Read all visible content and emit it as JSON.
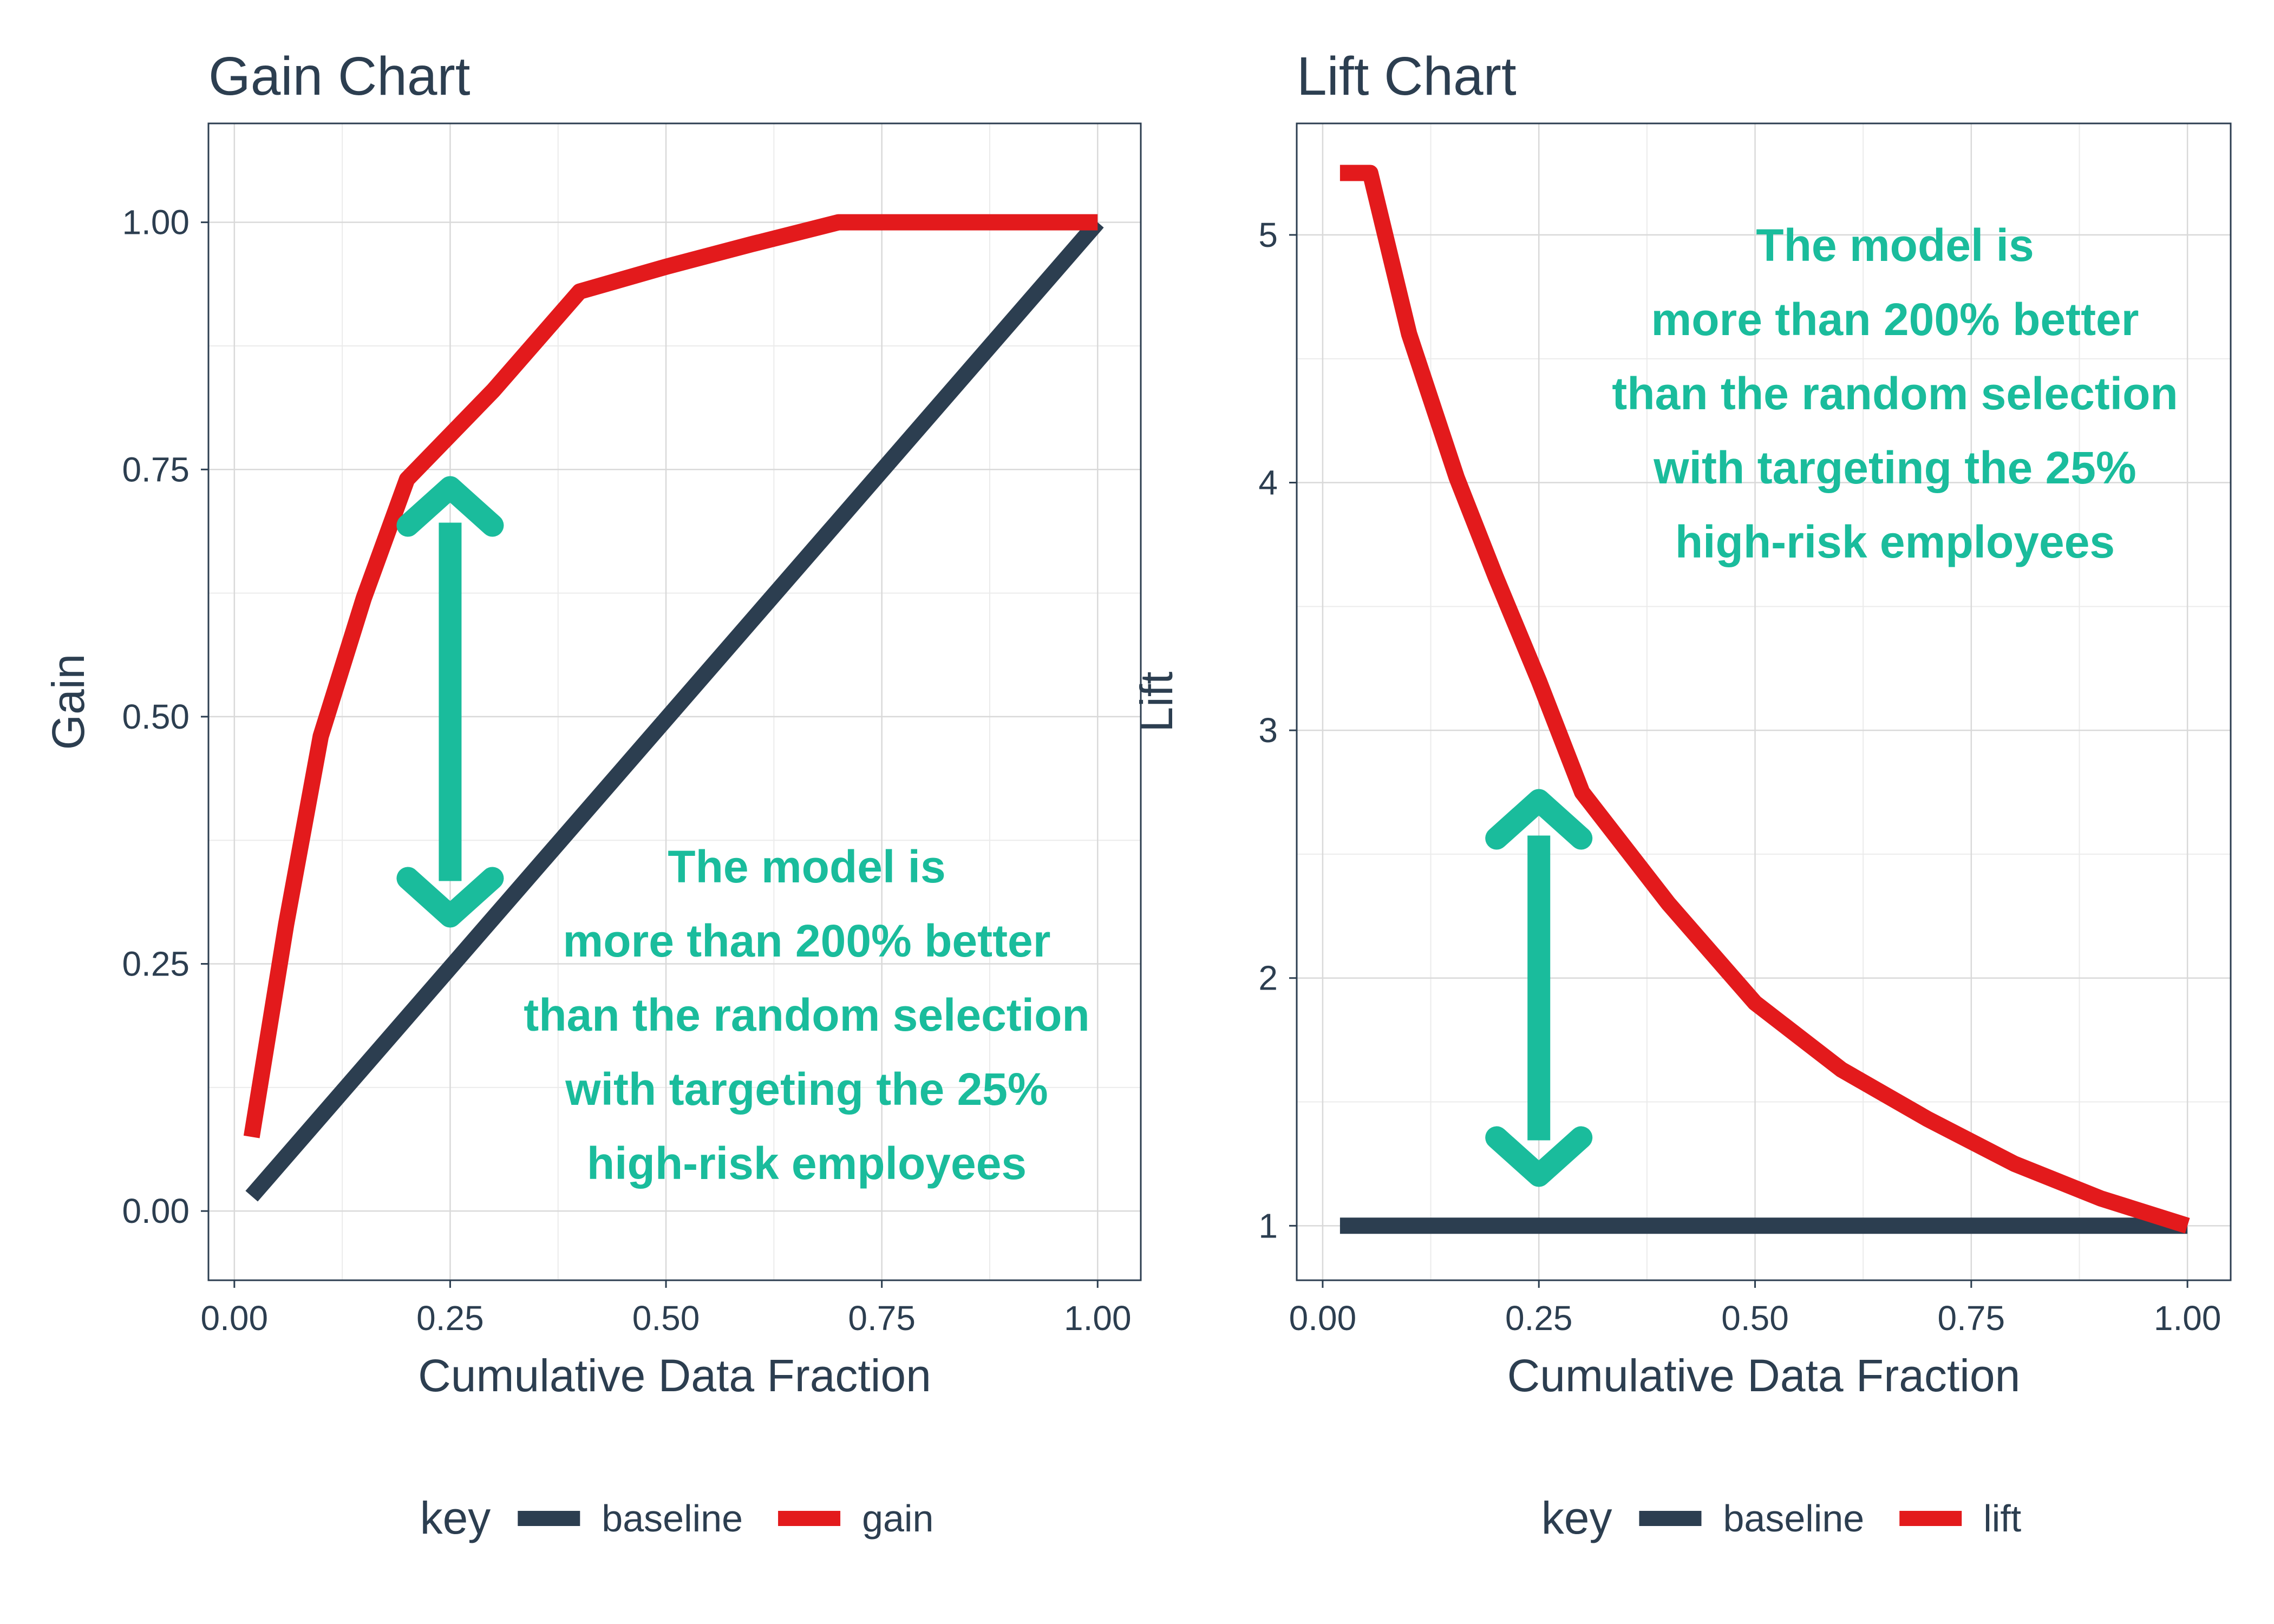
{
  "chart_data": [
    {
      "type": "line",
      "title": "Gain Chart",
      "xlabel": "Cumulative Data Fraction",
      "ylabel": "Gain",
      "xlim": [
        -0.03,
        1.05
      ],
      "ylim": [
        -0.07,
        1.1
      ],
      "x_ticks": [
        "0.00",
        "0.25",
        "0.50",
        "0.75",
        "1.00"
      ],
      "y_ticks": [
        "0.00",
        "0.25",
        "0.50",
        "0.75",
        "1.00"
      ],
      "grid": true,
      "legend_position": "bottom",
      "legend_title": "key",
      "series": [
        {
          "name": "baseline",
          "color": "#2c3e50",
          "x": [
            0.02,
            1.0
          ],
          "y": [
            0.015,
            1.0
          ]
        },
        {
          "name": "gain",
          "color": "#e31a1c",
          "x": [
            0.02,
            0.06,
            0.1,
            0.15,
            0.2,
            0.3,
            0.4,
            0.5,
            0.6,
            0.7,
            0.8,
            0.9,
            1.0
          ],
          "y": [
            0.075,
            0.29,
            0.48,
            0.62,
            0.74,
            0.83,
            0.93,
            0.955,
            0.978,
            1.0,
            1.0,
            1.0,
            1.0
          ]
        }
      ],
      "arrow": {
        "x": 0.25,
        "y_from": 0.29,
        "y_to": 0.74,
        "color": "#1abc9c"
      },
      "annotation": {
        "color": "#1abc9c",
        "lines": [
          "The model is",
          "more than 200% better",
          "than the random selection",
          "with targeting the 25%",
          "high-risk employees"
        ]
      }
    },
    {
      "type": "line",
      "title": "Lift Chart",
      "xlabel": "Cumulative Data Fraction",
      "ylabel": "Lift",
      "xlim": [
        -0.03,
        1.05
      ],
      "ylim": [
        0.78,
        5.45
      ],
      "x_ticks": [
        "0.00",
        "0.25",
        "0.50",
        "0.75",
        "1.00"
      ],
      "y_ticks": [
        "1",
        "2",
        "3",
        "4",
        "5"
      ],
      "grid": true,
      "legend_position": "bottom",
      "legend_title": "key",
      "series": [
        {
          "name": "baseline",
          "color": "#2c3e50",
          "x": [
            0.02,
            1.0
          ],
          "y": [
            1.0,
            1.0
          ]
        },
        {
          "name": "lift",
          "color": "#e31a1c",
          "x": [
            0.02,
            0.055,
            0.1,
            0.155,
            0.2,
            0.25,
            0.3,
            0.4,
            0.5,
            0.6,
            0.7,
            0.8,
            0.9,
            1.0
          ],
          "y": [
            5.25,
            5.25,
            4.6,
            4.02,
            3.62,
            3.2,
            2.75,
            2.3,
            1.9,
            1.63,
            1.43,
            1.25,
            1.11,
            1.0
          ]
        }
      ],
      "arrow": {
        "x": 0.25,
        "y_from": 1.17,
        "y_to": 2.75,
        "color": "#1abc9c"
      },
      "annotation": {
        "color": "#1abc9c",
        "lines": [
          "The model is",
          "more than 200% better",
          "than the random selection",
          "with targeting the 25%",
          "high-risk employees"
        ]
      }
    }
  ]
}
